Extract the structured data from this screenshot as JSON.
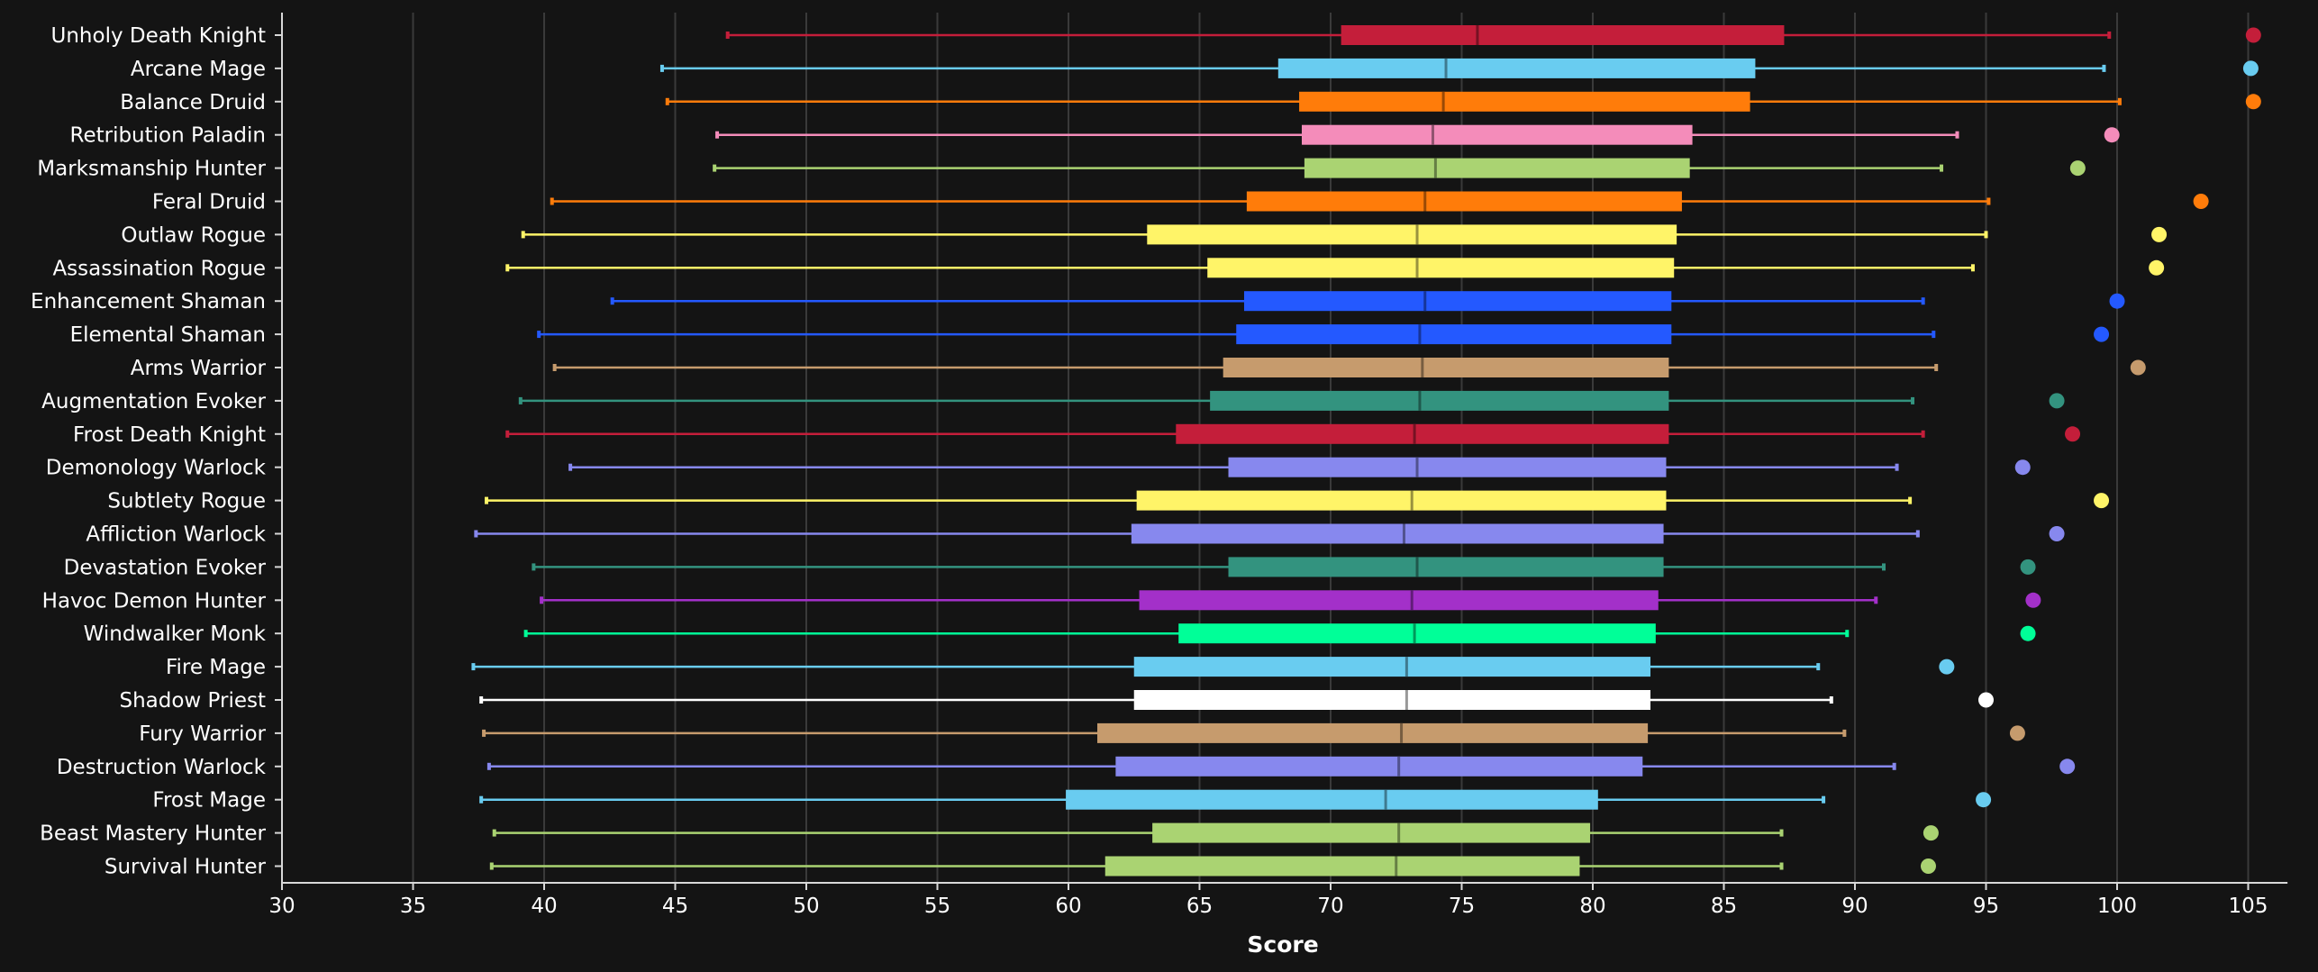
{
  "chart_data": {
    "type": "box",
    "xlabel": "Score",
    "xlim": [
      30,
      106.5
    ],
    "x_ticks": [
      30,
      35,
      40,
      45,
      50,
      55,
      60,
      65,
      70,
      75,
      80,
      85,
      90,
      95,
      100,
      105
    ],
    "grid": "vertical",
    "legend": "none",
    "series": [
      {
        "label": "Unholy Death Knight",
        "color": "#C41E3A",
        "min": 47.0,
        "q1": 70.4,
        "median": 75.6,
        "q3": 87.3,
        "max": 99.7,
        "outlier": 105.2
      },
      {
        "label": "Arcane Mage",
        "color": "#69CCF0",
        "min": 44.5,
        "q1": 68.0,
        "median": 74.4,
        "q3": 86.2,
        "max": 99.5,
        "outlier": 105.1
      },
      {
        "label": "Balance Druid",
        "color": "#FF7C0A",
        "min": 44.7,
        "q1": 68.8,
        "median": 74.3,
        "q3": 86.0,
        "max": 100.1,
        "outlier": 105.2
      },
      {
        "label": "Retribution Paladin",
        "color": "#F48CBA",
        "min": 46.6,
        "q1": 68.9,
        "median": 73.9,
        "q3": 83.8,
        "max": 93.9,
        "outlier": 99.8
      },
      {
        "label": "Marksmanship Hunter",
        "color": "#AAD372",
        "min": 46.5,
        "q1": 69.0,
        "median": 74.0,
        "q3": 83.7,
        "max": 93.3,
        "outlier": 98.5
      },
      {
        "label": "Feral Druid",
        "color": "#FF7C0A",
        "min": 40.3,
        "q1": 66.8,
        "median": 73.6,
        "q3": 83.4,
        "max": 95.1,
        "outlier": 103.2
      },
      {
        "label": "Outlaw Rogue",
        "color": "#FFF468",
        "min": 39.2,
        "q1": 63.0,
        "median": 73.3,
        "q3": 83.2,
        "max": 95.0,
        "outlier": 101.6
      },
      {
        "label": "Assassination Rogue",
        "color": "#FFF468",
        "min": 38.6,
        "q1": 65.3,
        "median": 73.3,
        "q3": 83.1,
        "max": 94.5,
        "outlier": 101.5
      },
      {
        "label": "Enhancement Shaman",
        "color": "#2459FF",
        "min": 42.6,
        "q1": 66.7,
        "median": 73.6,
        "q3": 83.0,
        "max": 92.6,
        "outlier": 100.0
      },
      {
        "label": "Elemental Shaman",
        "color": "#2459FF",
        "min": 39.8,
        "q1": 66.4,
        "median": 73.4,
        "q3": 83.0,
        "max": 93.0,
        "outlier": 99.4
      },
      {
        "label": "Arms Warrior",
        "color": "#C69B6D",
        "min": 40.4,
        "q1": 65.9,
        "median": 73.5,
        "q3": 82.9,
        "max": 93.1,
        "outlier": 100.8
      },
      {
        "label": "Augmentation Evoker",
        "color": "#33937F",
        "min": 39.1,
        "q1": 65.4,
        "median": 73.4,
        "q3": 82.9,
        "max": 92.2,
        "outlier": 97.7
      },
      {
        "label": "Frost Death Knight",
        "color": "#C41E3A",
        "min": 38.6,
        "q1": 64.1,
        "median": 73.2,
        "q3": 82.9,
        "max": 92.6,
        "outlier": 98.3
      },
      {
        "label": "Demonology Warlock",
        "color": "#8788EE",
        "min": 41.0,
        "q1": 66.1,
        "median": 73.3,
        "q3": 82.8,
        "max": 91.6,
        "outlier": 96.4
      },
      {
        "label": "Subtlety Rogue",
        "color": "#FFF468",
        "min": 37.8,
        "q1": 62.6,
        "median": 73.1,
        "q3": 82.8,
        "max": 92.1,
        "outlier": 99.4
      },
      {
        "label": "Affliction Warlock",
        "color": "#8788EE",
        "min": 37.4,
        "q1": 62.4,
        "median": 72.8,
        "q3": 82.7,
        "max": 92.4,
        "outlier": 97.7
      },
      {
        "label": "Devastation Evoker",
        "color": "#33937F",
        "min": 39.6,
        "q1": 66.1,
        "median": 73.3,
        "q3": 82.7,
        "max": 91.1,
        "outlier": 96.6
      },
      {
        "label": "Havoc Demon Hunter",
        "color": "#A330C9",
        "min": 39.9,
        "q1": 62.7,
        "median": 73.1,
        "q3": 82.5,
        "max": 90.8,
        "outlier": 96.8
      },
      {
        "label": "Windwalker Monk",
        "color": "#00FF98",
        "min": 39.3,
        "q1": 64.2,
        "median": 73.2,
        "q3": 82.4,
        "max": 89.7,
        "outlier": 96.6
      },
      {
        "label": "Fire Mage",
        "color": "#69CCF0",
        "min": 37.3,
        "q1": 62.5,
        "median": 72.9,
        "q3": 82.2,
        "max": 88.6,
        "outlier": 93.5
      },
      {
        "label": "Shadow Priest",
        "color": "#FFFFFF",
        "min": 37.6,
        "q1": 62.5,
        "median": 72.9,
        "q3": 82.2,
        "max": 89.1,
        "outlier": 95.0
      },
      {
        "label": "Fury Warrior",
        "color": "#C69B6D",
        "min": 37.7,
        "q1": 61.1,
        "median": 72.7,
        "q3": 82.1,
        "max": 89.6,
        "outlier": 96.2
      },
      {
        "label": "Destruction Warlock",
        "color": "#8788EE",
        "min": 37.9,
        "q1": 61.8,
        "median": 72.6,
        "q3": 81.9,
        "max": 91.5,
        "outlier": 98.1
      },
      {
        "label": "Frost Mage",
        "color": "#69CCF0",
        "min": 37.6,
        "q1": 59.9,
        "median": 72.1,
        "q3": 80.2,
        "max": 88.8,
        "outlier": 94.9
      },
      {
        "label": "Beast Mastery Hunter",
        "color": "#AAD372",
        "min": 38.1,
        "q1": 63.2,
        "median": 72.6,
        "q3": 79.9,
        "max": 87.2,
        "outlier": 92.9
      },
      {
        "label": "Survival Hunter",
        "color": "#AAD372",
        "min": 38.0,
        "q1": 61.4,
        "median": 72.5,
        "q3": 79.5,
        "max": 87.2,
        "outlier": 92.8
      }
    ]
  }
}
